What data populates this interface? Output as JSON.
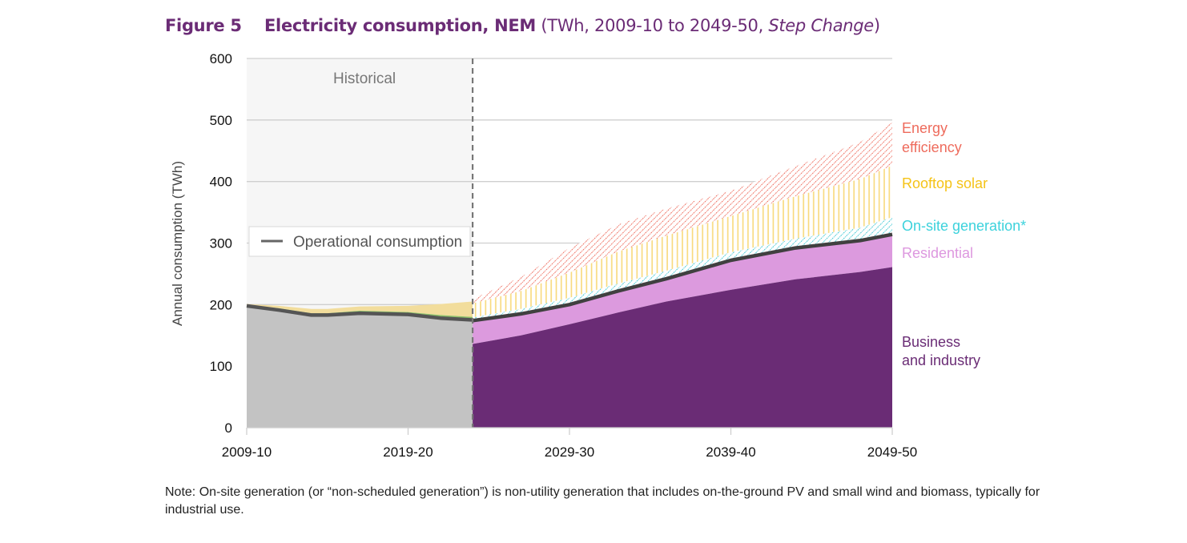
{
  "title": {
    "figure_label": "Figure 5",
    "main": "Electricity consumption, NEM",
    "paren_open": " (TWh, 2009-10 to 2049-50, ",
    "paren_italic": "Step Change",
    "paren_close": ")"
  },
  "note": "Note: On-site generation (or “non-scheduled generation”) is non-utility generation that includes on-the-ground PV and small wind and biomass, typically for industrial use.",
  "chart_data": {
    "type": "area",
    "title": "Electricity consumption, NEM (TWh, 2009-10 to 2049-50, Step Change)",
    "xlabel": "",
    "ylabel": "Annual consumption (TWh)",
    "ylim": [
      0,
      600
    ],
    "yticks": [
      0,
      100,
      200,
      300,
      400,
      500,
      600
    ],
    "xticks": [
      "2009-10",
      "2019-20",
      "2029-30",
      "2039-40",
      "2049-50"
    ],
    "grid": true,
    "historical_label": "Historical",
    "historical_end_year_index": 14,
    "legend": {
      "position": "center-left",
      "entries": [
        "Operational consumption"
      ]
    },
    "colors": {
      "historical_fill": "#c3c3c3",
      "historical_bg": "#f6f6f6",
      "historical_solar": "#f2dd9c",
      "historical_onsite": "#8cc068",
      "business": "#6a2c75",
      "residential": "#dc9ade",
      "onsite": "#3fc8d4",
      "solar": "#f8d56a",
      "efficiency": "#ee6b5c",
      "operational_line": "#404040"
    },
    "historical": {
      "x_index": [
        0,
        2,
        4,
        5,
        7,
        10,
        12,
        14
      ],
      "operational": [
        198,
        191,
        183,
        183,
        186,
        184,
        178,
        175
      ],
      "onsite_top": [
        199,
        194,
        186,
        186,
        190,
        188,
        183,
        180
      ],
      "solar_top": [
        201,
        198,
        193,
        193,
        197,
        198,
        201,
        205
      ]
    },
    "forecast": {
      "x_index": [
        14,
        17,
        20,
        23,
        26,
        30,
        34,
        38,
        40
      ],
      "business": [
        136,
        150,
        168,
        187,
        205,
        224,
        241,
        253,
        261
      ],
      "operational": [
        174,
        185,
        200,
        222,
        242,
        272,
        292,
        304,
        314
      ],
      "onsite_top": [
        179,
        193,
        211,
        234,
        255,
        285,
        307,
        325,
        342
      ],
      "solar_top": [
        202,
        222,
        252,
        286,
        312,
        344,
        376,
        404,
        426
      ],
      "efficiency_top": [
        209,
        245,
        292,
        330,
        356,
        385,
        425,
        464,
        496
      ]
    },
    "series_labels": [
      {
        "name": "Energy efficiency",
        "lines": [
          "Energy",
          "efficiency"
        ],
        "color": "#ee6b5c"
      },
      {
        "name": "Rooftop solar",
        "lines": [
          "Rooftop solar"
        ],
        "color": "#f5c318"
      },
      {
        "name": "On-site generation*",
        "lines": [
          "On-site generation*"
        ],
        "color": "#3cd2dc"
      },
      {
        "name": "Residential",
        "lines": [
          "Residential"
        ],
        "color": "#dd98df"
      },
      {
        "name": "Business and industry",
        "lines": [
          "Business",
          "and industry"
        ],
        "color": "#6a2c75"
      }
    ]
  }
}
